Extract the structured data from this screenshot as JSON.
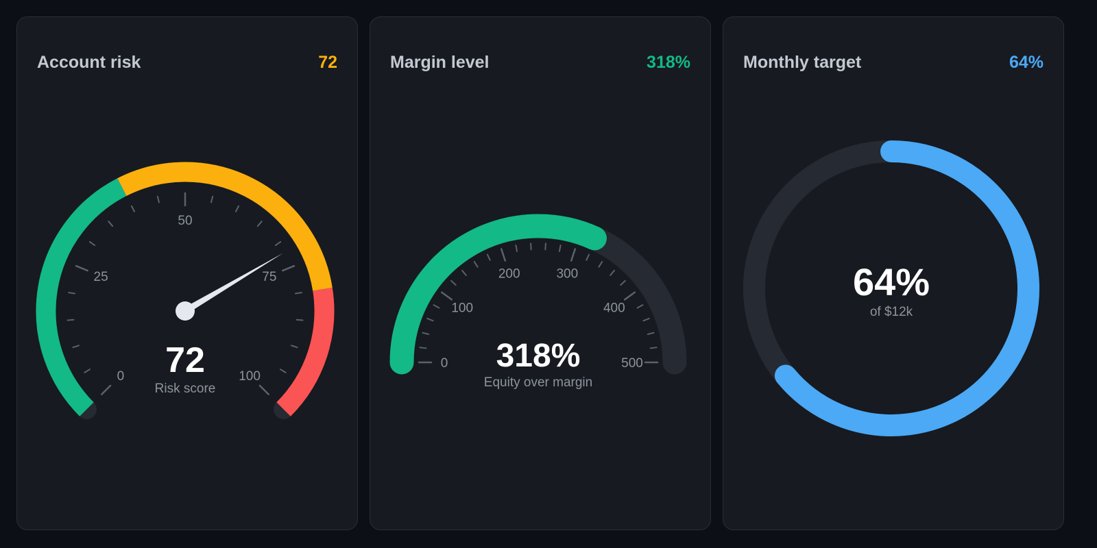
{
  "colors": {
    "green": "#13b986",
    "amber": "#fcb00e",
    "red": "#fb5454",
    "blue": "#4ba9f5",
    "track": "#262a32",
    "needle": "#e5e9ef",
    "tick": "#5b626d",
    "tick_label": "#8c939d",
    "value_text": "#ffffff",
    "sub_text": "#8d949e"
  },
  "cards": [
    {
      "title": "Account risk",
      "value": "72"
    },
    {
      "title": "Margin level",
      "value": "318%"
    },
    {
      "title": "Monthly target",
      "value": "64%"
    }
  ],
  "chart_data": [
    {
      "type": "gauge",
      "title": "Account risk",
      "value": 72,
      "range": [
        0,
        100
      ],
      "bands": [
        {
          "from": 0,
          "to": 40,
          "color": "#13b986"
        },
        {
          "from": 40,
          "to": 80,
          "color": "#fcb00e"
        },
        {
          "from": 80,
          "to": 100,
          "color": "#fb5454"
        }
      ],
      "tick_labels": [
        "0",
        "25",
        "50",
        "75",
        "100"
      ],
      "center_value": "72",
      "center_label": "Risk score"
    },
    {
      "type": "gauge",
      "title": "Margin level",
      "value": 318,
      "range": [
        0,
        500
      ],
      "fill_color": "#13b986",
      "tick_labels": [
        "0",
        "100",
        "200",
        "300",
        "400",
        "500"
      ],
      "center_value": "318%",
      "center_label": "Equity over margin"
    },
    {
      "type": "donut",
      "title": "Monthly target",
      "value": 64,
      "range": [
        0,
        100
      ],
      "fill_color": "#4ba9f5",
      "center_value": "64%",
      "center_label": "of $12k"
    }
  ]
}
